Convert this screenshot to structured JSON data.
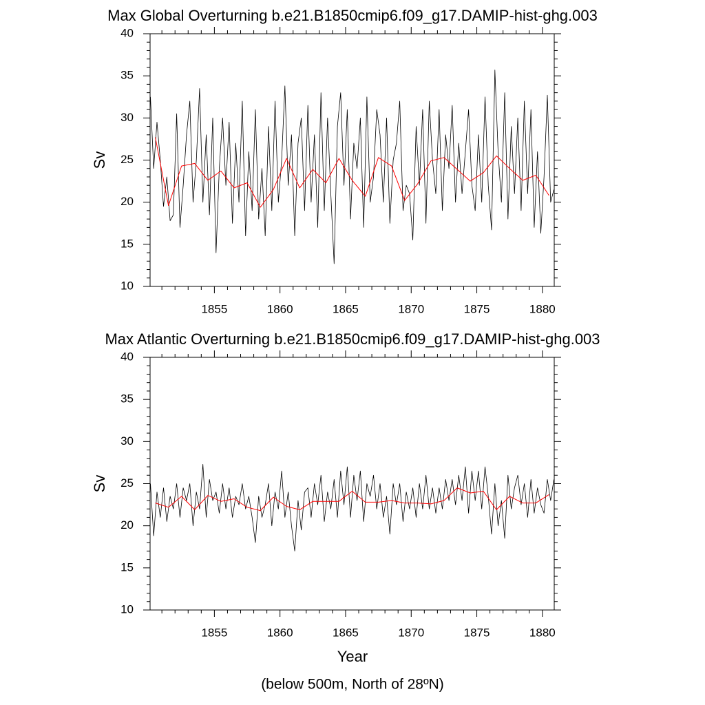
{
  "chart_data": [
    {
      "type": "line",
      "title": "Max Global Overturning b.e21.B1850cmip6.f09_g17.DAMIP-hist-ghg.003",
      "y_label": "Sv",
      "xlim": [
        1850.1,
        1880.9
      ],
      "xticks": [
        1855,
        1860,
        1865,
        1870,
        1875,
        1880
      ],
      "x_minor_ticks": [
        1851,
        1852,
        1853,
        1854,
        1856,
        1857,
        1858,
        1859,
        1861,
        1862,
        1863,
        1864,
        1866,
        1867,
        1868,
        1869,
        1871,
        1872,
        1873,
        1874,
        1876,
        1877,
        1878,
        1879
      ],
      "ylim": [
        10,
        40
      ],
      "yticks": [
        10,
        15,
        20,
        25,
        30,
        35,
        40
      ],
      "y_minor_ticks": [
        11,
        12,
        13,
        14,
        16,
        17,
        18,
        19,
        21,
        22,
        23,
        24,
        26,
        27,
        28,
        29,
        31,
        32,
        33,
        34,
        36,
        37,
        38,
        39
      ],
      "series": [
        {
          "color": "#000000",
          "x": "quarterly",
          "values": [
            32.5,
            24,
            29.5,
            25,
            19.5,
            23,
            17.8,
            18.5,
            30.5,
            17,
            22,
            28,
            32,
            20,
            25,
            33.5,
            20,
            28,
            18.5,
            30,
            14,
            24,
            30,
            22,
            29.5,
            17.5,
            27,
            20,
            32,
            16,
            26,
            19,
            31,
            18,
            24,
            16,
            29,
            19,
            32,
            20,
            25,
            33.8,
            22,
            28,
            16,
            27,
            30,
            19,
            31.5,
            20,
            28,
            17,
            33,
            19,
            30,
            21,
            12.7,
            29,
            33,
            22,
            31,
            18,
            27,
            24,
            30,
            17,
            32.5,
            20,
            23,
            31,
            28,
            20,
            30,
            17.5,
            25,
            27,
            32,
            19,
            22,
            21,
            15.5,
            29,
            22,
            31,
            17.5,
            32,
            25,
            21,
            31,
            19,
            28,
            24,
            31.5,
            20,
            27,
            21,
            26,
            31,
            22,
            19,
            28,
            20,
            32.5,
            22,
            16.7,
            35.7,
            26,
            20,
            33,
            18,
            29,
            21,
            30,
            19,
            32,
            21,
            31,
            17,
            26,
            16.3,
            23,
            32.7,
            20,
            21.5
          ]
        },
        {
          "color": "#ff0000",
          "x": "annual",
          "values": [
            27.7,
            19.6,
            24.3,
            24.6,
            22.6,
            23.7,
            21.7,
            22.3,
            19.4,
            21.5,
            25.2,
            21.7,
            23.9,
            22.3,
            25.2,
            22.6,
            20.7,
            25.3,
            24.3,
            20.2,
            22.2,
            24.9,
            25.3,
            23.9,
            22.5,
            23.5,
            25.5,
            24.0,
            22.6,
            23.2,
            20.8
          ]
        }
      ]
    },
    {
      "type": "line",
      "title": "Max Atlantic Overturning b.e21.B1850cmip6.f09_g17.DAMIP-hist-ghg.003",
      "y_label": "Sv",
      "x_label": "Year",
      "note": "(below 500m, North of 28ºN)",
      "xlim": [
        1850.1,
        1880.9
      ],
      "xticks": [
        1855,
        1860,
        1865,
        1870,
        1875,
        1880
      ],
      "x_minor_ticks": [
        1851,
        1852,
        1853,
        1854,
        1856,
        1857,
        1858,
        1859,
        1861,
        1862,
        1863,
        1864,
        1866,
        1867,
        1868,
        1869,
        1871,
        1872,
        1873,
        1874,
        1876,
        1877,
        1878,
        1879
      ],
      "ylim": [
        10,
        40
      ],
      "yticks": [
        10,
        15,
        20,
        25,
        30,
        35,
        40
      ],
      "y_minor_ticks": [
        11,
        12,
        13,
        14,
        16,
        17,
        18,
        19,
        21,
        22,
        23,
        24,
        26,
        27,
        28,
        29,
        31,
        32,
        33,
        34,
        36,
        37,
        38,
        39
      ],
      "series": [
        {
          "color": "#000000",
          "x": "quarterly",
          "values": [
            25,
            18.8,
            24,
            21,
            24.5,
            20.5,
            23.5,
            22,
            25,
            21,
            24.5,
            23,
            25,
            20,
            24,
            22,
            27.3,
            21,
            25.5,
            23,
            24,
            21.5,
            25,
            22,
            24.5,
            21,
            23.5,
            22.5,
            25,
            22,
            23.5,
            21,
            18,
            23.5,
            21,
            22.5,
            25,
            20,
            24,
            22,
            26.5,
            21,
            24,
            20,
            17,
            23,
            19.5,
            24,
            24.5,
            21,
            25,
            22.5,
            26,
            20.5,
            24,
            22,
            25.5,
            21,
            26.5,
            22.5,
            27,
            21,
            26,
            23,
            26.5,
            20.5,
            25,
            23.5,
            26,
            22,
            25,
            21,
            23.5,
            19,
            25,
            22.5,
            25,
            20.5,
            24,
            22,
            24.5,
            21,
            25,
            22,
            26,
            22,
            24.5,
            21.5,
            24.5,
            22,
            25.5,
            23,
            25.5,
            22.5,
            26,
            23,
            27,
            21.5,
            26.5,
            23,
            26.5,
            22,
            27,
            23.5,
            19,
            25,
            20,
            23,
            18.5,
            26,
            22,
            24.5,
            26,
            22.5,
            25,
            21,
            25.5,
            21.5,
            24.5,
            22.5,
            21.5,
            25.5,
            23,
            25.5
          ]
        },
        {
          "color": "#ff0000",
          "x": "annual",
          "values": [
            22.7,
            22.2,
            23.5,
            21.9,
            23.6,
            22.9,
            23.2,
            22.2,
            21.8,
            23.4,
            22.3,
            21.9,
            22.9,
            22.9,
            22.9,
            24.1,
            22.8,
            22.8,
            23.0,
            22.7,
            22.7,
            22.6,
            23.0,
            24.5,
            23.9,
            24.1,
            21.9,
            23.5,
            22.7,
            22.7,
            23.7
          ]
        }
      ]
    }
  ]
}
